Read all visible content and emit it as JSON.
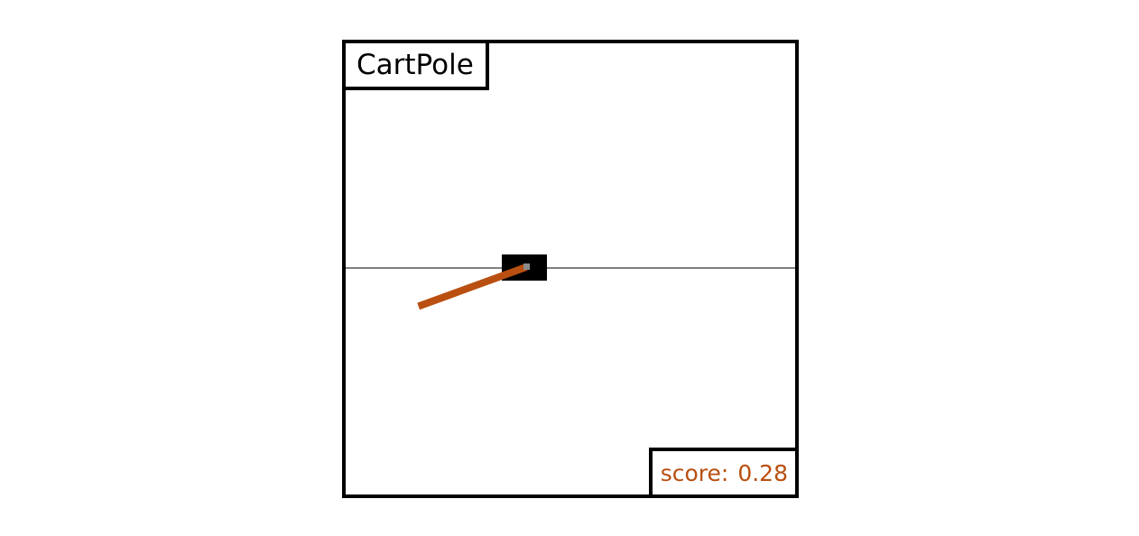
{
  "game": {
    "title": "CartPole",
    "score_label": "score:",
    "score_value": "0.28"
  },
  "state": {
    "pole_angle_deg": -110
  },
  "colors": {
    "frame": "#000000",
    "track": "#000000",
    "cart": "#000000",
    "pole": "#b94f10",
    "axle": "#8a8a8a",
    "score_text": "#b94f10"
  }
}
